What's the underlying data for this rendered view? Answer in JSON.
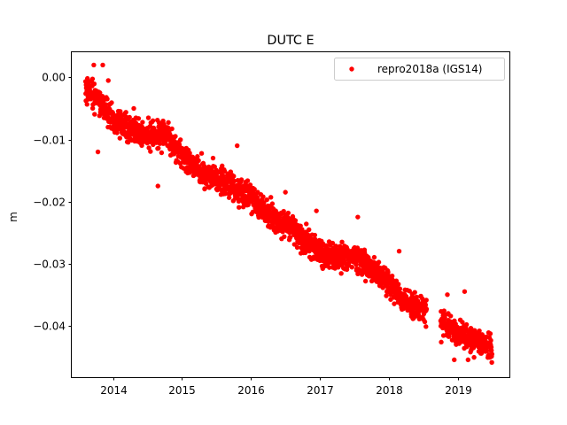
{
  "chart_data": {
    "type": "scatter",
    "title": "DUTC E",
    "xlabel": "",
    "ylabel": "m",
    "xlim": [
      2013.4,
      2019.75
    ],
    "ylim": [
      -0.0483,
      0.0042
    ],
    "x_ticks": [
      2014,
      2015,
      2016,
      2017,
      2018,
      2019
    ],
    "y_ticks": [
      0.0,
      -0.01,
      -0.02,
      -0.03,
      -0.04
    ],
    "y_tick_labels": [
      "0.00",
      "−0.01",
      "−0.02",
      "−0.03",
      "−0.04"
    ],
    "grid": false,
    "legend_position": "upper right",
    "series": [
      {
        "name": "repro2018a (IGS14)",
        "color": "#ff0000",
        "marker": "circle",
        "trend": {
          "x": [
            2013.6,
            2013.75,
            2014.0,
            2014.5,
            2014.75,
            2015.0,
            2015.25,
            2015.5,
            2015.75,
            2016.0,
            2016.25,
            2016.5,
            2016.75,
            2017.0,
            2017.25,
            2017.5,
            2017.75,
            2018.0,
            2018.25,
            2018.55,
            2018.75,
            2019.0,
            2019.25,
            2019.5
          ],
          "y": [
            -0.002,
            -0.003,
            -0.007,
            -0.0095,
            -0.009,
            -0.0125,
            -0.015,
            -0.0165,
            -0.0175,
            -0.0195,
            -0.022,
            -0.0235,
            -0.026,
            -0.028,
            -0.029,
            -0.029,
            -0.031,
            -0.033,
            -0.0365,
            -0.0375,
            -0.0395,
            -0.0415,
            -0.0425,
            -0.0435
          ]
        },
        "gap": [
          2018.55,
          2018.75
        ],
        "spread": 0.0015,
        "outliers": {
          "x": [
            2013.72,
            2013.78,
            2013.85,
            2013.88,
            2013.93,
            2014.3,
            2014.65,
            2015.45,
            2015.8,
            2016.25,
            2016.5,
            2016.95,
            2017.55,
            2018.15,
            2018.85,
            2018.95,
            2019.1,
            2019.15
          ],
          "y": [
            0.002,
            -0.012,
            0.002,
            -0.006,
            -0.0005,
            -0.005,
            -0.0175,
            -0.013,
            -0.011,
            -0.024,
            -0.0185,
            -0.0215,
            -0.0225,
            -0.028,
            -0.035,
            -0.0455,
            -0.0345,
            -0.0455
          ]
        }
      }
    ]
  }
}
